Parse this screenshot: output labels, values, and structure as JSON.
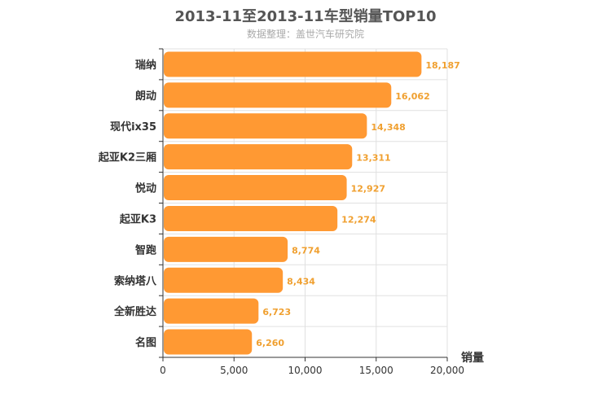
{
  "chart_data": {
    "type": "bar",
    "orientation": "horizontal",
    "title": "2013-11至2013-11车型销量TOP10",
    "subtitle": "数据整理：盖世汽车研究院",
    "categories": [
      "瑞纳",
      "朗动",
      "现代ix35",
      "起亚K2三厢",
      "悦动",
      "起亚K3",
      "智跑",
      "索纳塔八",
      "全新胜达",
      "名图"
    ],
    "values": [
      18187,
      16062,
      14348,
      13311,
      12927,
      12274,
      8774,
      8434,
      6723,
      6260
    ],
    "value_labels": [
      "18,187",
      "16,062",
      "14,348",
      "13,311",
      "12,927",
      "12,274",
      "8,774",
      "8,434",
      "6,723",
      "6,260"
    ],
    "xlabel": "销量",
    "ylabel": "",
    "xlim": [
      0,
      20000
    ],
    "ticks": [
      0,
      5000,
      10000,
      15000,
      20000
    ],
    "tick_labels": [
      "0",
      "5,000",
      "10,000",
      "15,000",
      "20,000"
    ],
    "grid": true,
    "legend": "none",
    "colors": {
      "bar": "#ff9933",
      "value_label": "#f0a030",
      "grid": "#e0e0e0",
      "axis": "#333333"
    }
  }
}
